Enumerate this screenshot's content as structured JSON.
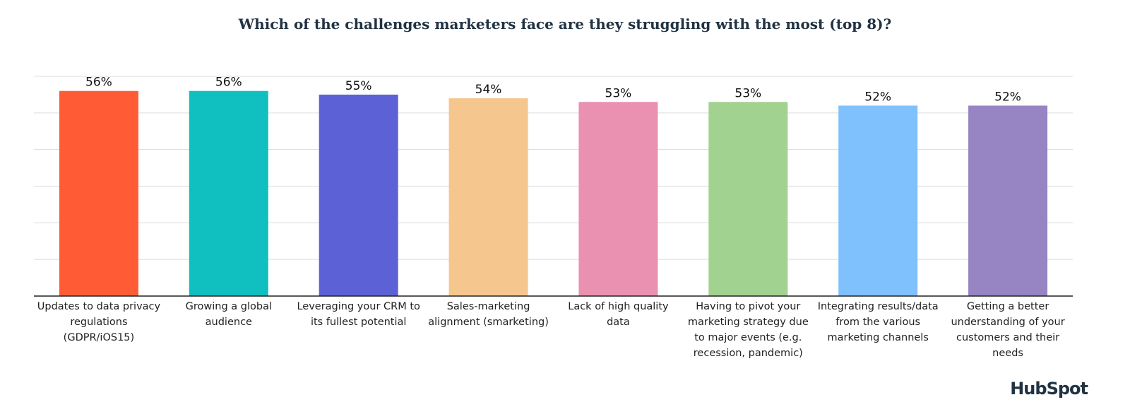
{
  "chart_data": {
    "type": "bar",
    "title": "Which of the challenges marketers face are they struggling with the most (top 8)?",
    "categories": [
      "Updates to data privacy regulations (GDPR/iOS15)",
      "Growing a global audience",
      "Leveraging your CRM to its fullest potential",
      "Sales-marketing alignment (smarketing)",
      "Lack of high quality data",
      "Having to pivot your marketing strategy due to major events (e.g. recession, pandemic)",
      "Integrating results/data from the various marketing channels",
      "Getting a better understanding of your customers and their needs"
    ],
    "values": [
      56,
      56,
      55,
      54,
      53,
      53,
      52,
      52
    ],
    "value_labels": [
      "56%",
      "56%",
      "55%",
      "54%",
      "53%",
      "53%",
      "52%",
      "52%"
    ],
    "colors": [
      "#ff5c35",
      "#10bfc0",
      "#5c62d6",
      "#f5c78f",
      "#ea90b1",
      "#a2d28f",
      "#7fc1fd",
      "#9784c2"
    ],
    "ylim": [
      0,
      60
    ],
    "yticks": [
      0,
      10,
      20,
      30,
      40,
      50,
      60
    ],
    "grid": true,
    "brand": "HubSpot"
  }
}
